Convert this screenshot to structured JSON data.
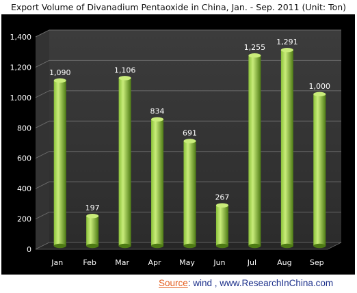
{
  "chart_data": {
    "type": "bar",
    "title": "Export Volume of Divanadium Pentaoxide in China, Jan. - Sep. 2011 (Unit: Ton)",
    "categories": [
      "Jan",
      "Feb",
      "Mar",
      "Apr",
      "May",
      "Jun",
      "Jul",
      "Aug",
      "Sep"
    ],
    "values": [
      1090,
      197,
      1106,
      834,
      691,
      267,
      1255,
      1291,
      1000
    ],
    "data_labels": [
      "1,090",
      "197",
      "1,106",
      "834",
      "691",
      "267",
      "1,255",
      "1,291",
      "1,000"
    ],
    "y_ticks": [
      "0",
      "200",
      "400",
      "600",
      "800",
      "1,000",
      "1,200",
      "1,400"
    ],
    "ylim": [
      0,
      1400
    ],
    "grid": true,
    "legend": "none",
    "colors": {
      "background": "#000000",
      "plot_wall": "#3a3a3a",
      "grid": "#6a6a6a",
      "bar_light": "#c9ec7a",
      "bar_mid": "#8bc23a",
      "bar_dark": "#4d7a14",
      "text": "#ffffff"
    }
  },
  "source": {
    "label": "Source",
    "text": ":  wind  , www.ResearchInChina.com"
  }
}
